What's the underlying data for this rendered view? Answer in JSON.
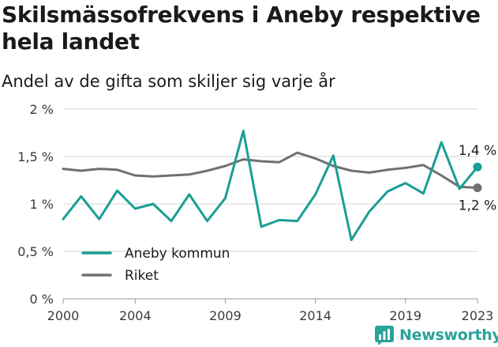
{
  "title": "Skilsmässofrekvens i Aneby respektive hela landet",
  "subtitle": "Andel av de gifta som skiljer sig varje år",
  "brand": {
    "name": "Newsworthy",
    "icon": "newsworthy-logo-icon",
    "color": "#2aa39a"
  },
  "chart_data": {
    "type": "line",
    "title": "Skilsmässofrekvens i Aneby respektive hela landet",
    "subtitle": "Andel av de gifta som skiljer sig varje år",
    "xlabel": "",
    "ylabel": "",
    "x": [
      2000,
      2001,
      2002,
      2003,
      2004,
      2005,
      2006,
      2007,
      2008,
      2009,
      2010,
      2011,
      2012,
      2013,
      2014,
      2015,
      2016,
      2017,
      2018,
      2019,
      2020,
      2021,
      2022,
      2023
    ],
    "xticks": [
      2000,
      2004,
      2009,
      2014,
      2019,
      2023
    ],
    "ylim": [
      0,
      2
    ],
    "yticks": [
      0,
      0.5,
      1,
      1.5,
      2
    ],
    "ytick_labels": [
      "0 %",
      "0,5 %",
      "1 %",
      "1,5 %",
      "2 %"
    ],
    "grid": "horizontal",
    "legend_position": "bottom-left",
    "series": [
      {
        "name": "Aneby kommun",
        "color": "#1a9e95",
        "values": [
          0.84,
          1.08,
          0.84,
          1.14,
          0.95,
          1.0,
          0.82,
          1.1,
          0.82,
          1.06,
          1.77,
          0.76,
          0.83,
          0.82,
          1.1,
          1.51,
          0.62,
          0.92,
          1.13,
          1.22,
          1.11,
          1.65,
          1.16,
          1.39
        ],
        "end_label": "1,4 %"
      },
      {
        "name": "Riket",
        "color": "#707070",
        "values": [
          1.37,
          1.35,
          1.37,
          1.36,
          1.3,
          1.29,
          1.3,
          1.31,
          1.35,
          1.4,
          1.47,
          1.45,
          1.44,
          1.54,
          1.48,
          1.4,
          1.35,
          1.33,
          1.36,
          1.38,
          1.41,
          1.3,
          1.18,
          1.17
        ],
        "end_label": "1,2 %"
      }
    ]
  }
}
